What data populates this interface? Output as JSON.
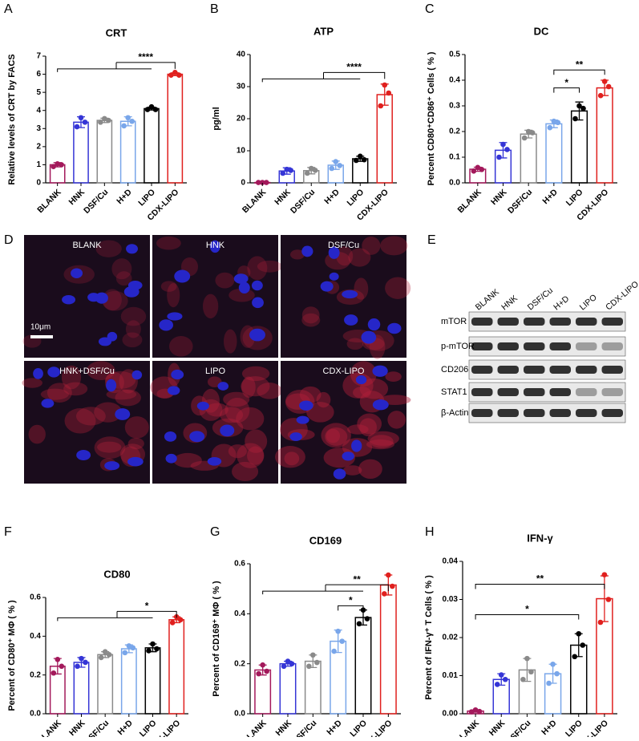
{
  "panel_labels": [
    "A",
    "B",
    "C",
    "D",
    "E",
    "F",
    "G",
    "H"
  ],
  "chart_data": [
    {
      "type": "bar",
      "title": "CRT",
      "ylabel": "Relative levels of CRT by FACS",
      "categories": [
        "BLANK",
        "HNK",
        "DSF/Cu",
        "H+D",
        "LIPO",
        "CDX-LIPO"
      ],
      "colors": [
        "#a3195b",
        "#3535d6",
        "#8a8a8a",
        "#79a6ea",
        "#000000",
        "#e0201e"
      ],
      "values": [
        1.0,
        3.35,
        3.45,
        3.4,
        4.1,
        6.0
      ],
      "errors": [
        0.12,
        0.3,
        0.12,
        0.25,
        0.08,
        0.08
      ],
      "points": [
        [
          0.9,
          1.05,
          1.0
        ],
        [
          3.1,
          3.6,
          3.35
        ],
        [
          3.35,
          3.55,
          3.45
        ],
        [
          3.15,
          3.6,
          3.4
        ],
        [
          4.05,
          4.2,
          4.05
        ],
        [
          5.95,
          6.1,
          5.95
        ]
      ],
      "ylim": [
        0,
        7
      ],
      "yticks": [
        0,
        1,
        2,
        3,
        4,
        5,
        6,
        7
      ],
      "annotations": [
        "****"
      ]
    },
    {
      "type": "bar",
      "title": "ATP",
      "ylabel": "pg/ml",
      "categories": [
        "BLANK",
        "HNK",
        "DSF/Cu",
        "H+D",
        "LIPO",
        "CDX-LIPO"
      ],
      "colors": [
        "#a3195b",
        "#3535d6",
        "#8a8a8a",
        "#79a6ea",
        "#000000",
        "#e0201e"
      ],
      "values": [
        0.1,
        3.7,
        3.8,
        5.5,
        7.5,
        27.5
      ],
      "errors": [
        0.1,
        1.0,
        1.0,
        1.3,
        0.8,
        3.3
      ],
      "points": [
        [
          0.1,
          0.1,
          0.1
        ],
        [
          3.0,
          4.2,
          3.9
        ],
        [
          3.0,
          4.5,
          3.9
        ],
        [
          4.5,
          6.6,
          5.4
        ],
        [
          7.0,
          8.3,
          7.2
        ],
        [
          24.0,
          30.5,
          28.0
        ]
      ],
      "ylim": [
        0,
        40
      ],
      "yticks": [
        0,
        10,
        20,
        30,
        40
      ],
      "annotations": [
        "****"
      ]
    },
    {
      "type": "bar",
      "title": "DC",
      "ylabel": "Percent CD80⁺CD86⁺ Cells ( % )",
      "categories": [
        "BLANK",
        "HNK",
        "DSF/Cu",
        "H+D",
        "LIPO",
        "CDX-LIPO"
      ],
      "colors": [
        "#a3195b",
        "#3535d6",
        "#8a8a8a",
        "#79a6ea",
        "#000000",
        "#e0201e"
      ],
      "values": [
        0.053,
        0.127,
        0.19,
        0.23,
        0.28,
        0.37
      ],
      "errors": [
        0.008,
        0.03,
        0.015,
        0.015,
        0.035,
        0.03
      ],
      "points": [
        [
          0.046,
          0.06,
          0.052
        ],
        [
          0.1,
          0.15,
          0.13
        ],
        [
          0.175,
          0.2,
          0.195
        ],
        [
          0.215,
          0.24,
          0.235
        ],
        [
          0.25,
          0.3,
          0.29
        ],
        [
          0.34,
          0.395,
          0.375
        ]
      ],
      "ylim": [
        0,
        0.5
      ],
      "yticks": [
        {
          "value": 0,
          "label": "0.0"
        },
        0.1,
        0.2,
        0.3,
        0.4,
        0.5
      ],
      "annotations": [
        "*",
        "**"
      ]
    },
    {
      "type": "bar",
      "title": "CD80",
      "ylabel": "Percent of CD80⁺ MΦ ( % )",
      "categories": [
        "BLANK",
        "HNK",
        "DSF/Cu",
        "H+D",
        "LIPO",
        "CDX-LIPO"
      ],
      "colors": [
        "#a3195b",
        "#3535d6",
        "#8a8a8a",
        "#79a6ea",
        "#000000",
        "#e0201e"
      ],
      "values": [
        0.245,
        0.265,
        0.305,
        0.335,
        0.34,
        0.485
      ],
      "errors": [
        0.04,
        0.025,
        0.015,
        0.02,
        0.02,
        0.015
      ],
      "points": [
        [
          0.21,
          0.28,
          0.245
        ],
        [
          0.245,
          0.285,
          0.265
        ],
        [
          0.29,
          0.32,
          0.305
        ],
        [
          0.315,
          0.35,
          0.34
        ],
        [
          0.325,
          0.36,
          0.335
        ],
        [
          0.47,
          0.5,
          0.485
        ]
      ],
      "ylim": [
        0,
        0.6
      ],
      "yticks": [
        {
          "value": 0,
          "label": "0.0"
        },
        0.2,
        0.4,
        0.6
      ],
      "annotations": [
        "*"
      ]
    },
    {
      "type": "bar",
      "title": "CD169",
      "ylabel": "Percent of CD169⁺ MΦ ( % )",
      "categories": [
        "BLANK",
        "HNK",
        "DSF/Cu",
        "H+D",
        "LIPO",
        "CDX-LIPO"
      ],
      "colors": [
        "#a3195b",
        "#3535d6",
        "#8a8a8a",
        "#79a6ea",
        "#000000",
        "#e0201e"
      ],
      "values": [
        0.175,
        0.2,
        0.21,
        0.29,
        0.385,
        0.515
      ],
      "errors": [
        0.02,
        0.01,
        0.025,
        0.045,
        0.03,
        0.04
      ],
      "points": [
        [
          0.16,
          0.195,
          0.17
        ],
        [
          0.19,
          0.21,
          0.2
        ],
        [
          0.19,
          0.235,
          0.205
        ],
        [
          0.25,
          0.33,
          0.29
        ],
        [
          0.36,
          0.415,
          0.38
        ],
        [
          0.48,
          0.555,
          0.51
        ]
      ],
      "ylim": [
        0,
        0.6
      ],
      "yticks": [
        {
          "value": 0,
          "label": "0.0"
        },
        0.2,
        0.4,
        0.6
      ],
      "annotations": [
        "**",
        "*"
      ]
    },
    {
      "type": "bar",
      "title": "IFN-γ",
      "ylabel": "Percent of IFN-γ⁺ T Cells ( % )",
      "categories": [
        "BLANK",
        "HNK",
        "DSF/Cu",
        "H+D",
        "LIPO",
        "CDX-LIPO"
      ],
      "colors": [
        "#a3195b",
        "#3535d6",
        "#8a8a8a",
        "#79a6ea",
        "#000000",
        "#e0201e"
      ],
      "values": [
        0.0007,
        0.009,
        0.0115,
        0.0105,
        0.018,
        0.0302
      ],
      "errors": [
        0.0003,
        0.0015,
        0.003,
        0.0025,
        0.003,
        0.006
      ],
      "points": [
        [
          0.0005,
          0.001,
          0.0006
        ],
        [
          0.0077,
          0.0102,
          0.009
        ],
        [
          0.009,
          0.0145,
          0.011
        ],
        [
          0.008,
          0.013,
          0.0105
        ],
        [
          0.015,
          0.021,
          0.018
        ],
        [
          0.024,
          0.0365,
          0.03
        ]
      ],
      "ylim": [
        0,
        0.04
      ],
      "yticks": [
        {
          "value": 0,
          "label": "0.00"
        },
        0.01,
        0.02,
        0.03,
        0.04
      ],
      "annotations": [
        "*",
        "**"
      ]
    }
  ],
  "microscopy": {
    "panels": [
      "BLANK",
      "HNK",
      "DSF/Cu",
      "HNK+DSF/Cu",
      "LIPO",
      "CDX-LIPO"
    ],
    "scale_bar": "10μm"
  },
  "blot": {
    "lanes": [
      "BLANK",
      "HNK",
      "DSF/Cu",
      "H+D",
      "LIPO",
      "CDX-LIPO"
    ],
    "proteins": [
      "mTOR",
      "p-mTOR",
      "CD206",
      "STAT1",
      "β-Actin"
    ]
  }
}
